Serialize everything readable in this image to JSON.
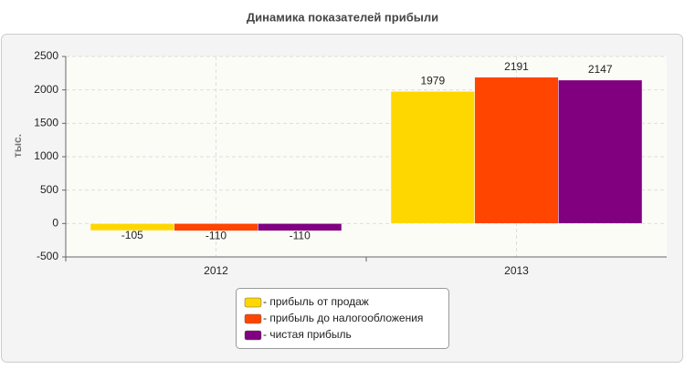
{
  "chart_data": {
    "type": "bar",
    "title": "Динамика показателей прибыли",
    "y_label": "тыс.",
    "categories": [
      "2012",
      "2013"
    ],
    "series": [
      {
        "name": "- прибыль от продаж",
        "color": "#ffd700",
        "values": [
          -105,
          1979
        ]
      },
      {
        "name": "- прибыль до налогообложения",
        "color": "#ff4500",
        "values": [
          -110,
          2191
        ]
      },
      {
        "name": "- чистая прибыль",
        "color": "#800080",
        "values": [
          -110,
          2147
        ]
      }
    ],
    "ylim": [
      -500,
      2500
    ],
    "yticks": [
      -500,
      0,
      500,
      1000,
      1500,
      2000,
      2500
    ],
    "grid": true
  }
}
